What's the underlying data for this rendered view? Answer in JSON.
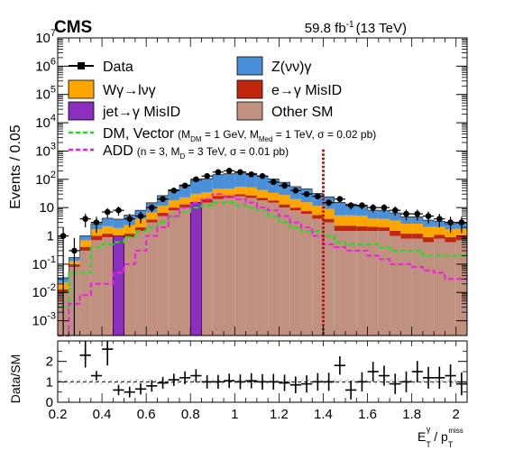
{
  "header": {
    "experiment": "CMS",
    "luminosity": "59.8 fb",
    "lumi_exponent": "-1",
    "energy": "(13 TeV)"
  },
  "legend": {
    "data": "Data",
    "zvv": "Z(νν)γ",
    "wg": "Wγ→lνγ",
    "egmisid": "e→γ MisID",
    "jetmisid": "jet→γ MisID",
    "othersm": "Other SM",
    "dm_label": "DM, Vector",
    "dm_m1": "M",
    "dm_m1_sub": "DM",
    "dm_m1_val": " = 1 GeV, M",
    "dm_m2_sub": "Med",
    "dm_m2_val": " = 1 TeV, σ = 0.02 pb)",
    "add_label": "ADD",
    "add_p1": "(n = 3, M",
    "add_p1_sub": "D",
    "add_p1_val": " = 3 TeV, σ = 0.01 pb)"
  },
  "axis": {
    "ylabel_top": "Events / 0.05",
    "ylabel_bottom": "Data/SM",
    "xlabel_main": "E",
    "xlabel_sup": "γ",
    "xlabel_sub": "T",
    "xlabel_div": " / p",
    "xlabel_sup2": "miss",
    "xlabel_sub2": "T",
    "xticks": [
      "0.2",
      "0.4",
      "0.6",
      "0.8",
      "1",
      "1.2",
      "1.4",
      "1.6",
      "1.8",
      "2"
    ],
    "yticks_top": [
      {
        "base": "10",
        "exp": "-3",
        "v": -3
      },
      {
        "base": "10",
        "exp": "-2",
        "v": -2
      },
      {
        "base": "10",
        "exp": "-1",
        "v": -1
      },
      {
        "base": "1",
        "exp": "",
        "v": 0
      },
      {
        "base": "10",
        "exp": "",
        "v": 1
      },
      {
        "base": "10",
        "exp": "2",
        "v": 2
      },
      {
        "base": "10",
        "exp": "3",
        "v": 3
      },
      {
        "base": "10",
        "exp": "4",
        "v": 4
      },
      {
        "base": "10",
        "exp": "5",
        "v": 5
      },
      {
        "base": "10",
        "exp": "6",
        "v": 6
      },
      {
        "base": "10",
        "exp": "7",
        "v": 7
      }
    ],
    "yticks_bottom": [
      "0",
      "1",
      "2"
    ]
  },
  "colors": {
    "zvv": "#4a90d9",
    "wg": "#ffa500",
    "egmisid": "#c0260e",
    "jetmisid": "#8a2fc0",
    "othersm": "#c09080",
    "dm": "#22dd22",
    "add": "#ee22dd",
    "cut": "#dd0000"
  },
  "chart_data": {
    "type": "bar",
    "stacked": true,
    "log_y": true,
    "xlim": [
      0.2,
      2.05
    ],
    "ylim": [
      0.0003,
      10000000
    ],
    "ratio_ylim": [
      0,
      3
    ],
    "bin_edges": [
      0.2,
      0.25,
      0.3,
      0.35,
      0.4,
      0.45,
      0.5,
      0.55,
      0.6,
      0.65,
      0.7,
      0.75,
      0.8,
      0.85,
      0.9,
      0.95,
      1.0,
      1.05,
      1.1,
      1.15,
      1.2,
      1.25,
      1.3,
      1.35,
      1.4,
      1.45,
      1.5,
      1.55,
      1.6,
      1.65,
      1.7,
      1.75,
      1.8,
      1.85,
      1.9,
      1.95,
      2.0,
      2.05
    ],
    "cut_line_x": 1.4,
    "series": [
      {
        "name": "Other SM",
        "key": "othersm",
        "values": [
          0.01,
          0.08,
          0.3,
          0.7,
          0.9,
          0.7,
          0.9,
          1.5,
          3,
          5,
          8,
          10,
          12,
          15,
          20,
          22,
          25,
          22,
          18,
          15,
          10,
          8,
          6,
          4,
          3,
          1.5,
          1.5,
          1.5,
          1.5,
          1.5,
          1.0,
          0.8,
          0.8,
          0.6,
          0.8,
          0.6,
          0.7
        ]
      },
      {
        "name": "jet→γ MisID",
        "key": "jetmisid",
        "values": [
          0,
          0,
          0,
          0,
          0,
          0,
          0,
          0,
          0,
          0,
          0,
          0,
          0,
          0,
          0,
          0,
          0,
          0,
          0,
          0,
          0,
          0,
          0,
          0,
          0,
          0,
          0,
          0,
          0,
          0,
          0,
          0,
          0,
          0,
          0,
          0,
          0
        ]
      },
      {
        "name": "e→γ MisID",
        "key": "egmisid",
        "values": [
          0.003,
          0.02,
          0.1,
          0.3,
          0.3,
          0.2,
          0.3,
          0.5,
          0.8,
          1.5,
          2,
          3,
          4,
          5,
          6,
          5,
          5,
          5,
          4,
          3,
          3,
          2,
          1.5,
          1.5,
          1.0,
          0.8,
          0.8,
          0.7,
          0.6,
          0.5,
          0.5,
          0.4,
          0.4,
          0.3,
          0.3,
          0.3,
          0.3
        ]
      },
      {
        "name": "Wγ→lνγ",
        "key": "wg",
        "values": [
          0.01,
          0.03,
          0.3,
          0.7,
          1.0,
          1.0,
          1.2,
          2,
          3,
          5,
          8,
          10,
          15,
          15,
          20,
          20,
          25,
          25,
          20,
          15,
          15,
          10,
          8,
          6,
          5,
          3,
          3,
          3,
          2,
          2,
          2,
          1.5,
          1.5,
          1.2,
          1.0,
          0.8,
          0.8
        ]
      },
      {
        "name": "Z(νν)γ",
        "key": "zvv",
        "values": [
          0.01,
          0.04,
          0.3,
          1.0,
          2,
          2,
          3,
          4,
          8,
          15,
          25,
          40,
          60,
          70,
          100,
          110,
          130,
          110,
          90,
          70,
          50,
          35,
          30,
          20,
          15,
          10,
          8,
          6,
          4,
          4,
          3,
          2,
          2,
          1.5,
          1.2,
          1.0,
          1.0
        ]
      }
    ],
    "jetmisid_spikes": [
      {
        "x0": 0.45,
        "x1": 0.5,
        "value": 1.0
      },
      {
        "x0": 0.8,
        "x1": 0.85,
        "value": 15
      }
    ],
    "data": {
      "name": "Data",
      "x": [
        0.225,
        0.275,
        0.325,
        0.375,
        0.425,
        0.475,
        0.525,
        0.575,
        0.625,
        0.675,
        0.725,
        0.775,
        0.825,
        0.875,
        0.925,
        0.975,
        1.025,
        1.075,
        1.125,
        1.175,
        1.225,
        1.275,
        1.325,
        1.375,
        1.425,
        1.475,
        1.525,
        1.575,
        1.625,
        1.675,
        1.725,
        1.775,
        1.825,
        1.875,
        1.925,
        1.975,
        2.025
      ],
      "y": [
        1.0,
        0.3,
        4,
        3,
        7,
        8,
        4,
        5,
        10,
        20,
        40,
        60,
        100,
        130,
        180,
        200,
        180,
        150,
        130,
        80,
        60,
        40,
        30,
        25,
        15,
        20,
        12,
        12,
        10,
        10,
        8,
        6,
        6,
        5,
        4,
        3,
        3
      ],
      "ratio": [
        null,
        null,
        2.3,
        1.3,
        2.6,
        0.6,
        0.5,
        0.65,
        0.8,
        0.95,
        1.1,
        1.2,
        1.3,
        1.0,
        1.0,
        1.05,
        1.0,
        1.05,
        1.0,
        1.0,
        0.95,
        0.85,
        0.9,
        1.0,
        1.0,
        1.8,
        0.6,
        1.0,
        1.5,
        1.3,
        0.9,
        1.0,
        1.5,
        1.2,
        1.2,
        1.3,
        0.9
      ]
    },
    "signals": [
      {
        "name": "DM, Vector",
        "key": "dm",
        "style": "dashed",
        "values": [
          0.003,
          0.05,
          0.05,
          0.4,
          0.5,
          0.6,
          0.9,
          1.5,
          2,
          3,
          5,
          7,
          10,
          12,
          15,
          15,
          12,
          10,
          8,
          5,
          3,
          2,
          1.5,
          1.5,
          1,
          0.6,
          0.5,
          0.5,
          0.5,
          0.4,
          0.3,
          0.3,
          0.3,
          0.2,
          0.2,
          0.2,
          0.2
        ]
      },
      {
        "name": "ADD",
        "key": "add",
        "style": "dashed",
        "values": [
          0.0003,
          0.004,
          0.008,
          0.02,
          0.02,
          0.05,
          0.1,
          0.3,
          1,
          2,
          5,
          10,
          15,
          20,
          30,
          25,
          20,
          15,
          10,
          8,
          5,
          3,
          2,
          1,
          0.5,
          0.4,
          0.3,
          0.3,
          0.2,
          0.15,
          0.1,
          0.1,
          0.08,
          0.06,
          0.05,
          0.03,
          0.03
        ]
      }
    ]
  }
}
